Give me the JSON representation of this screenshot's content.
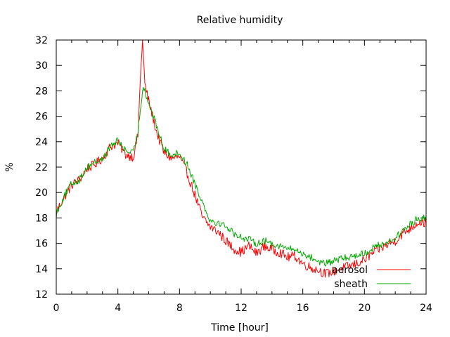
{
  "chart_data": {
    "type": "line",
    "title": "Relative humidity",
    "xlabel": "Time [hour]",
    "ylabel": "%",
    "xlim": [
      0,
      24
    ],
    "ylim": [
      12,
      32
    ],
    "xticks": [
      0,
      4,
      8,
      12,
      16,
      20,
      24
    ],
    "yticks": [
      12,
      14,
      16,
      18,
      20,
      22,
      24,
      26,
      28,
      30,
      32
    ],
    "grid": false,
    "legend_position": "bottom-right",
    "series": [
      {
        "name": "aerosol",
        "color": "#ff0000",
        "points": [
          [
            0.0,
            18.5
          ],
          [
            0.5,
            19.6
          ],
          [
            1.0,
            20.6
          ],
          [
            1.5,
            21.0
          ],
          [
            2.0,
            21.9
          ],
          [
            2.5,
            22.2
          ],
          [
            3.0,
            22.7
          ],
          [
            3.5,
            23.6
          ],
          [
            4.0,
            23.9
          ],
          [
            4.5,
            23.0
          ],
          [
            5.0,
            22.8
          ],
          [
            5.3,
            24.5
          ],
          [
            5.5,
            30.0
          ],
          [
            5.6,
            32.0
          ],
          [
            5.75,
            28.5
          ],
          [
            6.0,
            27.2
          ],
          [
            6.5,
            24.8
          ],
          [
            7.0,
            23.1
          ],
          [
            7.5,
            22.7
          ],
          [
            8.0,
            22.8
          ],
          [
            8.5,
            21.5
          ],
          [
            9.0,
            19.8
          ],
          [
            9.5,
            18.0
          ],
          [
            10.0,
            17.3
          ],
          [
            10.5,
            16.9
          ],
          [
            11.0,
            16.2
          ],
          [
            11.5,
            15.6
          ],
          [
            12.0,
            15.3
          ],
          [
            12.5,
            15.8
          ],
          [
            13.0,
            15.2
          ],
          [
            13.5,
            15.8
          ],
          [
            14.0,
            15.5
          ],
          [
            14.5,
            15.3
          ],
          [
            15.0,
            14.9
          ],
          [
            15.5,
            15.0
          ],
          [
            16.0,
            14.4
          ],
          [
            16.5,
            14.1
          ],
          [
            17.0,
            13.9
          ],
          [
            17.5,
            13.6
          ],
          [
            18.0,
            13.8
          ],
          [
            18.5,
            14.0
          ],
          [
            19.0,
            14.2
          ],
          [
            19.5,
            14.4
          ],
          [
            20.0,
            14.7
          ],
          [
            20.5,
            15.2
          ],
          [
            21.0,
            15.6
          ],
          [
            21.5,
            15.9
          ],
          [
            22.0,
            16.2
          ],
          [
            22.5,
            16.8
          ],
          [
            23.0,
            17.2
          ],
          [
            23.5,
            17.7
          ],
          [
            24.0,
            17.6
          ]
        ]
      },
      {
        "name": "sheath",
        "color": "#00aa00",
        "points": [
          [
            0.0,
            18.3
          ],
          [
            0.5,
            19.7
          ],
          [
            1.0,
            20.7
          ],
          [
            1.5,
            21.0
          ],
          [
            2.0,
            22.0
          ],
          [
            2.5,
            22.4
          ],
          [
            3.0,
            22.6
          ],
          [
            3.5,
            23.6
          ],
          [
            4.0,
            24.1
          ],
          [
            4.5,
            23.3
          ],
          [
            5.0,
            23.1
          ],
          [
            5.3,
            24.8
          ],
          [
            5.5,
            27.0
          ],
          [
            5.65,
            28.5
          ],
          [
            5.8,
            27.8
          ],
          [
            6.0,
            27.0
          ],
          [
            6.5,
            25.3
          ],
          [
            7.0,
            23.4
          ],
          [
            7.5,
            23.0
          ],
          [
            8.0,
            23.1
          ],
          [
            8.5,
            22.2
          ],
          [
            9.0,
            20.7
          ],
          [
            9.5,
            19.2
          ],
          [
            10.0,
            17.8
          ],
          [
            10.5,
            17.6
          ],
          [
            11.0,
            17.4
          ],
          [
            11.5,
            16.8
          ],
          [
            12.0,
            16.5
          ],
          [
            12.5,
            16.3
          ],
          [
            13.0,
            16.0
          ],
          [
            13.5,
            16.2
          ],
          [
            14.0,
            16.0
          ],
          [
            14.5,
            15.8
          ],
          [
            15.0,
            15.6
          ],
          [
            15.5,
            15.5
          ],
          [
            16.0,
            15.2
          ],
          [
            16.5,
            14.9
          ],
          [
            17.0,
            14.6
          ],
          [
            17.5,
            14.4
          ],
          [
            18.0,
            14.6
          ],
          [
            18.5,
            14.8
          ],
          [
            19.0,
            14.9
          ],
          [
            19.5,
            15.1
          ],
          [
            20.0,
            15.2
          ],
          [
            20.5,
            15.6
          ],
          [
            21.0,
            15.9
          ],
          [
            21.5,
            16.1
          ],
          [
            22.0,
            16.4
          ],
          [
            22.5,
            17.0
          ],
          [
            23.0,
            17.5
          ],
          [
            23.5,
            18.0
          ],
          [
            24.0,
            18.0
          ]
        ]
      }
    ]
  }
}
